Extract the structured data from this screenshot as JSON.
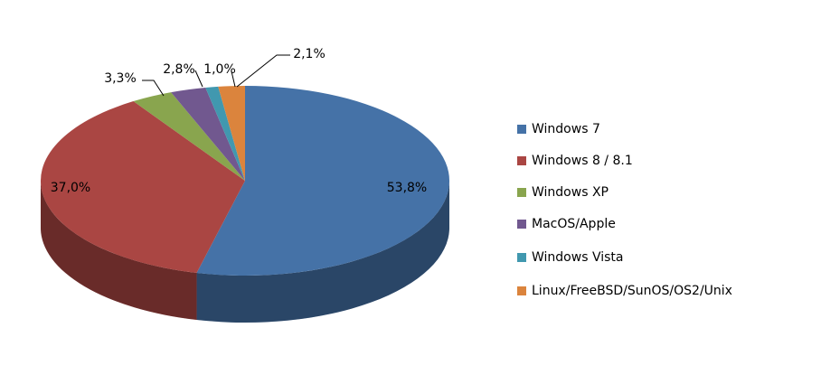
{
  "chart_data": {
    "type": "pie",
    "categories": [
      "Windows 7",
      "Windows 8 / 8.1",
      "Windows XP",
      "MacOS/Apple",
      "Windows Vista",
      "Linux/FreeBSD/SunOS/OS2/Unix"
    ],
    "values": [
      53.8,
      37.0,
      3.3,
      2.8,
      1.0,
      2.1
    ],
    "value_labels": [
      "53,8%",
      "37,0%",
      "3,3%",
      "2,8%",
      "1,0%",
      "2,1%"
    ],
    "colors": [
      "#4572a7",
      "#aa4643",
      "#89a54e",
      "#71588f",
      "#4198af",
      "#db843d"
    ],
    "legend": "right"
  }
}
